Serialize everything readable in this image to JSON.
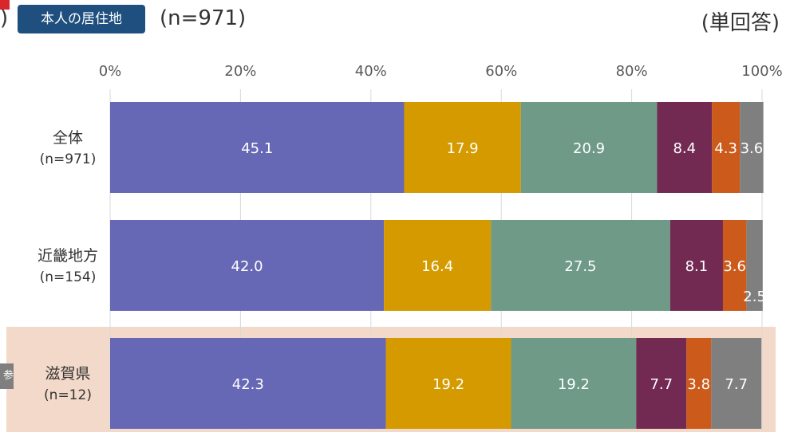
{
  "header": {
    "fragment": ")",
    "filter_badge": "本人の居住地",
    "sample_size": "(n=971)",
    "answer_type": "(単回答)",
    "side_badge": "参"
  },
  "colors": {
    "series": [
      "#6667b5",
      "#d49a00",
      "#6f9a87",
      "#722a52",
      "#cc5a1a",
      "#7f7f7f"
    ],
    "highlight_row_bg": "#f3d9c9",
    "grid": "#d9d9d9",
    "badge_bg": "#1e4f7e",
    "red_mark": "#d9262b"
  },
  "chart_data": {
    "type": "bar",
    "orientation": "horizontal",
    "stacked": true,
    "categories": [
      {
        "name": "全体",
        "n": "(n=971)"
      },
      {
        "name": "近畿地方",
        "n": "(n=154)"
      },
      {
        "name": "滋賀県",
        "n": "(n=12)"
      }
    ],
    "series": [
      {
        "values": [
          45.1,
          42.0,
          42.3
        ],
        "labels": [
          "45.1",
          "42.0",
          "42.3"
        ]
      },
      {
        "values": [
          17.9,
          16.4,
          19.2
        ],
        "labels": [
          "17.9",
          "16.4",
          "19.2"
        ]
      },
      {
        "values": [
          20.9,
          27.5,
          19.2
        ],
        "labels": [
          "20.9",
          "27.5",
          "19.2"
        ]
      },
      {
        "values": [
          8.4,
          8.1,
          7.7
        ],
        "labels": [
          "8.4",
          "8.1",
          "7.7"
        ]
      },
      {
        "values": [
          4.3,
          3.6,
          3.8
        ],
        "labels": [
          "4.3",
          "3.6",
          "3.8"
        ]
      },
      {
        "values": [
          3.6,
          2.5,
          7.7
        ],
        "labels": [
          "3.6",
          "2.5",
          "7.7"
        ]
      }
    ],
    "x_ticks": [
      "0%",
      "20%",
      "40%",
      "60%",
      "80%",
      "100%"
    ],
    "xlim": [
      0,
      100
    ],
    "grid": true,
    "highlighted_category": "滋賀県"
  }
}
